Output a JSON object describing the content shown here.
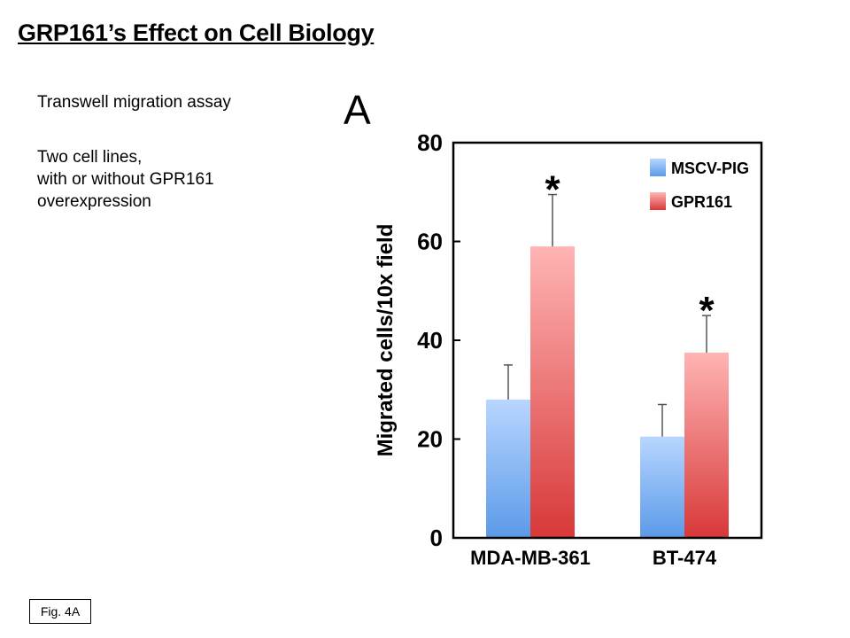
{
  "slide": {
    "title": "GRP161’s Effect on Cell Biology",
    "description_heading": "Transwell migration assay",
    "description_lines": [
      "Two cell lines,",
      "with or without GPR161",
      "overexpression"
    ],
    "figure_label": "Fig. 4A"
  },
  "chart_data": {
    "type": "bar",
    "panel_label": "A",
    "title": "",
    "xlabel": "",
    "ylabel": "Migrated cells/10x field",
    "categories": [
      "MDA-MB-361",
      "BT-474"
    ],
    "series": [
      {
        "name": "MSCV-PIG",
        "values": [
          28,
          20.5
        ],
        "errors": [
          7,
          6.5
        ],
        "color": "#5b9ae8",
        "color_light": "#b8d6ff",
        "significant": [
          false,
          false
        ]
      },
      {
        "name": "GPR161",
        "values": [
          59,
          37.5
        ],
        "errors": [
          10.5,
          7.5
        ],
        "color": "#d83838",
        "color_light": "#ffb4b4",
        "significant": [
          true,
          true
        ]
      }
    ],
    "significance_marker": "*",
    "ylim": [
      0,
      80
    ],
    "yticks": [
      0,
      20,
      40,
      60,
      80
    ],
    "grid": false,
    "legend_position": "top-right"
  }
}
